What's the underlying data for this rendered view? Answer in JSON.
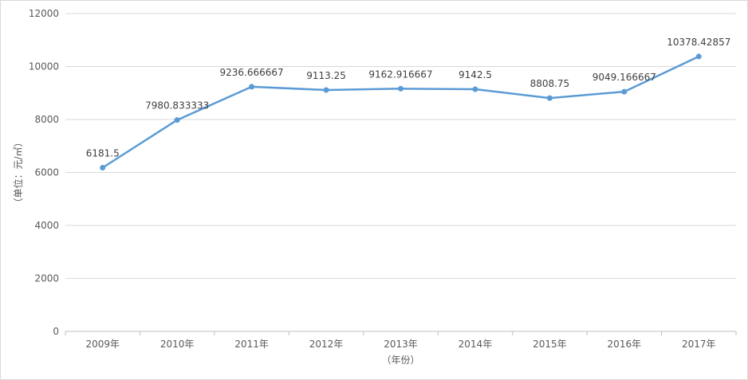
{
  "chart_data": {
    "type": "line",
    "title": "",
    "xlabel": "（年份）",
    "ylabel": "（单位：元/㎡）",
    "categories": [
      "2009年",
      "2010年",
      "2011年",
      "2012年",
      "2013年",
      "2014年",
      "2015年",
      "2016年",
      "2017年"
    ],
    "series": [
      {
        "values": [
          6181.5,
          7980.833333,
          9236.666667,
          9113.25,
          9162.916667,
          9142.5,
          8808.75,
          9049.166667,
          10378.42857
        ],
        "value_labels": [
          "6181.5",
          "7980.833333",
          "9236.666667",
          "9113.25",
          "9162.916667",
          "9142.5",
          "8808.75",
          "9049.166667",
          "10378.42857"
        ],
        "color": "#5b9bd5"
      }
    ],
    "ylim": [
      0,
      12000
    ],
    "yticks": [
      "0",
      "2000",
      "4000",
      "6000",
      "8000",
      "10000",
      "12000"
    ],
    "grid": true,
    "legend": "none"
  }
}
